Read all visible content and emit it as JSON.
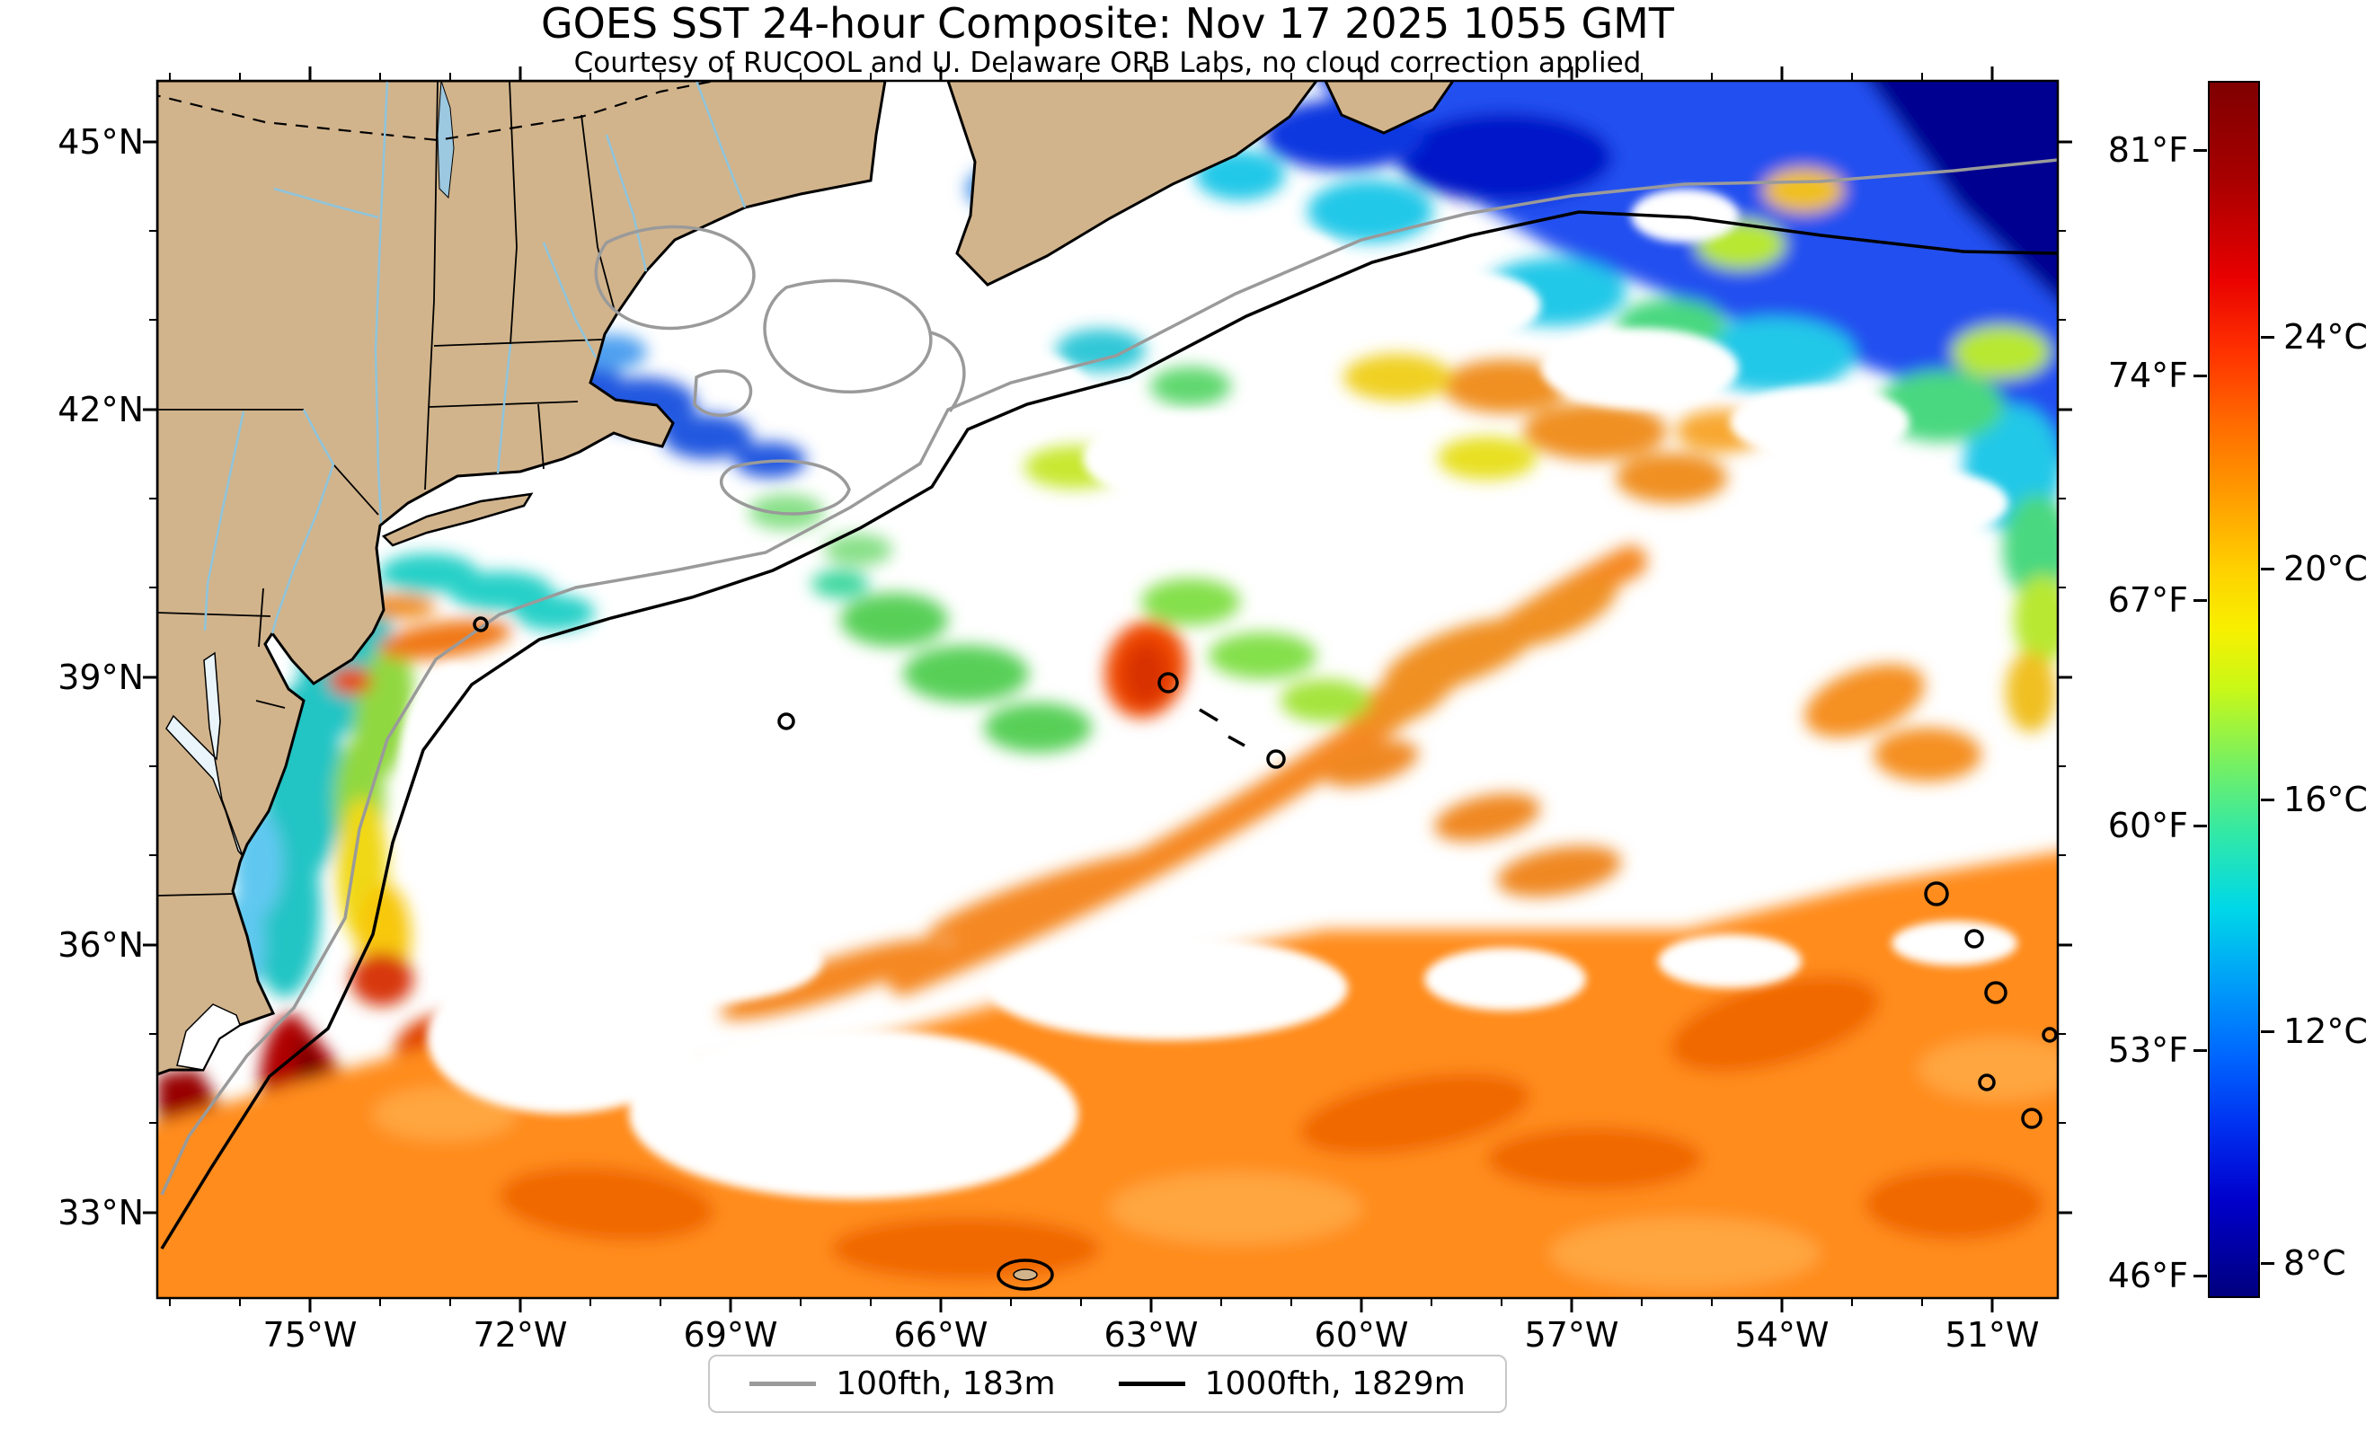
{
  "title": "GOES SST 24-hour Composite: Nov 17 2025 1055 GMT",
  "subtitle": "Courtesy of RUCOOL and U. Delaware ORB Labs, no cloud correction applied",
  "axes": {
    "lat_ticks": [
      "45°N",
      "42°N",
      "39°N",
      "36°N",
      "33°N"
    ],
    "lon_ticks": [
      "75°W",
      "72°W",
      "69°W",
      "66°W",
      "63°W",
      "60°W",
      "57°W",
      "54°W",
      "51°W"
    ]
  },
  "colorbar": {
    "colormap": "jet",
    "fahrenheit_ticks": [
      "81°F",
      "74°F",
      "67°F",
      "60°F",
      "53°F",
      "46°F"
    ],
    "celsius_ticks": [
      "24°C",
      "20°C",
      "16°C",
      "12°C",
      "8°C"
    ]
  },
  "legend": {
    "items": [
      {
        "label": "100fth, 183m",
        "color": "#9a9a9a"
      },
      {
        "label": "1000fth, 1829m",
        "color": "#000000"
      }
    ]
  },
  "map": {
    "land_color": "#d2b48c",
    "no_data_color": "#ffffff",
    "coastline_color": "#000000",
    "contour_100fth_color": "#9a9a9a",
    "contour_1000fth_color": "#000000"
  }
}
